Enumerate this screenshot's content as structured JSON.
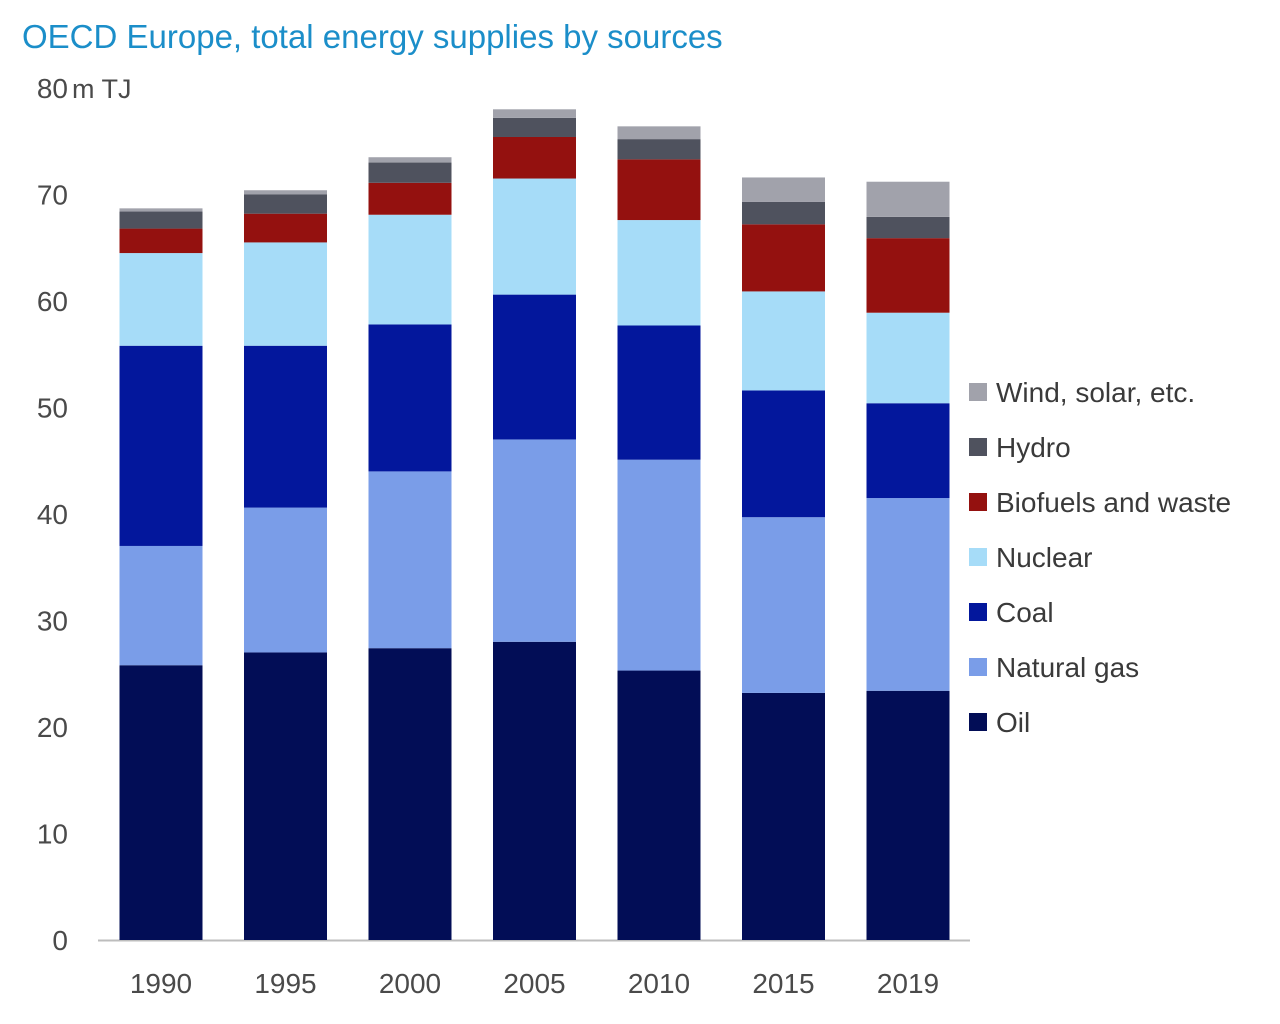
{
  "chart_data": {
    "type": "bar",
    "stacked": true,
    "title": "OECD Europe, total energy supplies by sources",
    "ylabel": "m TJ",
    "xlabel": "",
    "ylim": [
      0,
      80
    ],
    "yticks": [
      0,
      10,
      20,
      30,
      40,
      50,
      60,
      70,
      80
    ],
    "grid": false,
    "legend_position": "right",
    "categories": [
      "1990",
      "1995",
      "2000",
      "2005",
      "2010",
      "2015",
      "2019"
    ],
    "series": [
      {
        "name": "Oil",
        "color": "#020d56",
        "values": [
          25.8,
          27.0,
          27.4,
          28.0,
          25.3,
          23.2,
          23.4
        ]
      },
      {
        "name": "Natural gas",
        "color": "#7a9de8",
        "values": [
          11.2,
          13.6,
          16.6,
          19.0,
          19.8,
          16.5,
          18.1
        ]
      },
      {
        "name": "Coal",
        "color": "#03179c",
        "values": [
          18.8,
          15.2,
          13.8,
          13.6,
          12.6,
          11.9,
          8.9
        ]
      },
      {
        "name": "Nuclear",
        "color": "#a6dcf8",
        "values": [
          8.7,
          9.7,
          10.3,
          10.9,
          9.9,
          9.3,
          8.5
        ]
      },
      {
        "name": "Biofuels and waste",
        "color": "#94110f",
        "values": [
          2.3,
          2.7,
          3.0,
          3.9,
          5.7,
          6.3,
          7.0
        ]
      },
      {
        "name": "Hydro",
        "color": "#4f525e",
        "values": [
          1.6,
          1.8,
          1.9,
          1.8,
          1.9,
          2.1,
          2.0
        ]
      },
      {
        "name": "Wind, solar, etc.",
        "color": "#a1a2ab",
        "values": [
          0.3,
          0.4,
          0.5,
          0.8,
          1.2,
          2.3,
          3.3
        ]
      }
    ]
  }
}
